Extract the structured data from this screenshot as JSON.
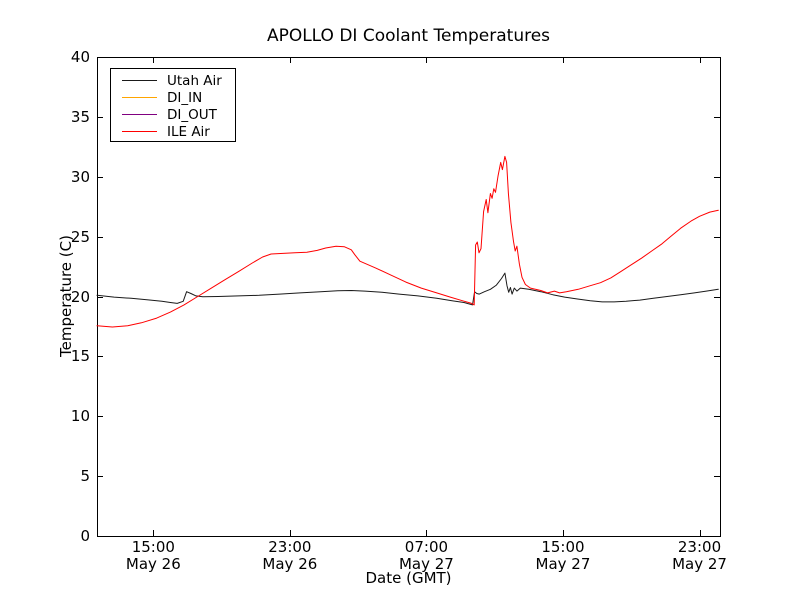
{
  "chart_data": {
    "type": "line",
    "title": "APOLLO DI Coolant Temperatures",
    "xlabel": "Date (GMT)",
    "ylabel": "Temperature (C)",
    "x_unit": "hours since May 26 00:00 GMT",
    "xlim": [
      11.7,
      48.2
    ],
    "ylim": [
      0,
      40
    ],
    "grid": false,
    "legend_position": "upper left",
    "yticks": [
      0,
      5,
      10,
      15,
      20,
      25,
      30,
      35,
      40
    ],
    "xticks": [
      {
        "value": 15,
        "time": "15:00",
        "date": "May 26"
      },
      {
        "value": 23,
        "time": "23:00",
        "date": "May 26"
      },
      {
        "value": 31,
        "time": "07:00",
        "date": "May 27"
      },
      {
        "value": 39,
        "time": "15:00",
        "date": "May 27"
      },
      {
        "value": 47,
        "time": "23:00",
        "date": "May 27"
      }
    ],
    "series": [
      {
        "name": "Utah Air",
        "color": "#1a1a1a",
        "points": [
          [
            11.7,
            20.1
          ],
          [
            12.7,
            19.95
          ],
          [
            13.7,
            19.85
          ],
          [
            14.7,
            19.72
          ],
          [
            15.5,
            19.6
          ],
          [
            16.0,
            19.5
          ],
          [
            16.4,
            19.42
          ],
          [
            16.75,
            19.6
          ],
          [
            16.95,
            20.4
          ],
          [
            17.2,
            20.25
          ],
          [
            17.5,
            20.05
          ],
          [
            17.9,
            19.98
          ],
          [
            18.8,
            20.0
          ],
          [
            20.0,
            20.05
          ],
          [
            21.2,
            20.1
          ],
          [
            22.4,
            20.2
          ],
          [
            23.6,
            20.3
          ],
          [
            24.8,
            20.4
          ],
          [
            25.8,
            20.48
          ],
          [
            26.6,
            20.5
          ],
          [
            27.4,
            20.45
          ],
          [
            28.4,
            20.35
          ],
          [
            29.4,
            20.2
          ],
          [
            30.5,
            20.05
          ],
          [
            31.6,
            19.85
          ],
          [
            32.5,
            19.65
          ],
          [
            33.2,
            19.5
          ],
          [
            33.7,
            19.3
          ],
          [
            33.82,
            20.4
          ],
          [
            33.95,
            20.25
          ],
          [
            34.1,
            20.2
          ],
          [
            34.4,
            20.4
          ],
          [
            34.75,
            20.6
          ],
          [
            35.1,
            20.95
          ],
          [
            35.4,
            21.5
          ],
          [
            35.6,
            21.95
          ],
          [
            35.72,
            20.9
          ],
          [
            35.82,
            20.35
          ],
          [
            35.92,
            20.75
          ],
          [
            36.02,
            20.2
          ],
          [
            36.15,
            20.7
          ],
          [
            36.3,
            20.45
          ],
          [
            36.5,
            20.7
          ],
          [
            37.0,
            20.6
          ],
          [
            37.7,
            20.4
          ],
          [
            38.4,
            20.15
          ],
          [
            39.1,
            19.95
          ],
          [
            39.8,
            19.8
          ],
          [
            40.6,
            19.65
          ],
          [
            41.3,
            19.55
          ],
          [
            42.0,
            19.55
          ],
          [
            42.7,
            19.6
          ],
          [
            43.5,
            19.7
          ],
          [
            44.3,
            19.85
          ],
          [
            45.1,
            20.0
          ],
          [
            45.9,
            20.15
          ],
          [
            46.7,
            20.3
          ],
          [
            47.4,
            20.45
          ],
          [
            48.1,
            20.6
          ]
        ]
      },
      {
        "name": "DI_IN",
        "color": "#ffa500",
        "points": []
      },
      {
        "name": "DI_OUT",
        "color": "#800080",
        "points": []
      },
      {
        "name": "ILE Air",
        "color": "#ff0000",
        "points": [
          [
            11.7,
            17.55
          ],
          [
            12.6,
            17.45
          ],
          [
            13.5,
            17.55
          ],
          [
            14.3,
            17.8
          ],
          [
            15.2,
            18.2
          ],
          [
            16.0,
            18.7
          ],
          [
            16.8,
            19.3
          ],
          [
            17.6,
            20.0
          ],
          [
            18.4,
            20.7
          ],
          [
            19.2,
            21.4
          ],
          [
            20.0,
            22.1
          ],
          [
            20.8,
            22.8
          ],
          [
            21.4,
            23.3
          ],
          [
            21.9,
            23.55
          ],
          [
            22.6,
            23.6
          ],
          [
            23.3,
            23.65
          ],
          [
            24.0,
            23.7
          ],
          [
            24.6,
            23.85
          ],
          [
            25.1,
            24.05
          ],
          [
            25.7,
            24.2
          ],
          [
            26.2,
            24.15
          ],
          [
            26.6,
            23.9
          ],
          [
            26.8,
            23.5
          ],
          [
            27.1,
            22.95
          ],
          [
            28.0,
            22.4
          ],
          [
            28.9,
            21.8
          ],
          [
            29.8,
            21.2
          ],
          [
            30.7,
            20.7
          ],
          [
            31.6,
            20.3
          ],
          [
            32.4,
            19.95
          ],
          [
            33.1,
            19.65
          ],
          [
            33.6,
            19.45
          ],
          [
            33.8,
            19.3
          ],
          [
            33.88,
            24.3
          ],
          [
            33.98,
            24.55
          ],
          [
            34.08,
            23.65
          ],
          [
            34.2,
            24.0
          ],
          [
            34.35,
            27.1
          ],
          [
            34.5,
            28.1
          ],
          [
            34.6,
            27.0
          ],
          [
            34.75,
            28.6
          ],
          [
            34.85,
            28.2
          ],
          [
            34.95,
            29.0
          ],
          [
            35.05,
            28.7
          ],
          [
            35.2,
            30.1
          ],
          [
            35.35,
            31.2
          ],
          [
            35.45,
            30.6
          ],
          [
            35.6,
            31.7
          ],
          [
            35.7,
            31.2
          ],
          [
            35.8,
            28.6
          ],
          [
            35.95,
            26.2
          ],
          [
            36.1,
            24.6
          ],
          [
            36.2,
            23.8
          ],
          [
            36.3,
            24.2
          ],
          [
            36.45,
            22.7
          ],
          [
            36.6,
            21.6
          ],
          [
            36.8,
            21.0
          ],
          [
            37.1,
            20.7
          ],
          [
            37.7,
            20.5
          ],
          [
            38.1,
            20.3
          ],
          [
            38.5,
            20.45
          ],
          [
            38.8,
            20.3
          ],
          [
            39.2,
            20.4
          ],
          [
            39.9,
            20.6
          ],
          [
            40.6,
            20.9
          ],
          [
            41.2,
            21.15
          ],
          [
            41.8,
            21.55
          ],
          [
            42.4,
            22.1
          ],
          [
            43.0,
            22.65
          ],
          [
            43.6,
            23.2
          ],
          [
            44.2,
            23.8
          ],
          [
            44.8,
            24.4
          ],
          [
            45.3,
            25.0
          ],
          [
            45.9,
            25.7
          ],
          [
            46.5,
            26.3
          ],
          [
            47.0,
            26.7
          ],
          [
            47.6,
            27.05
          ],
          [
            48.1,
            27.2
          ]
        ]
      }
    ]
  }
}
